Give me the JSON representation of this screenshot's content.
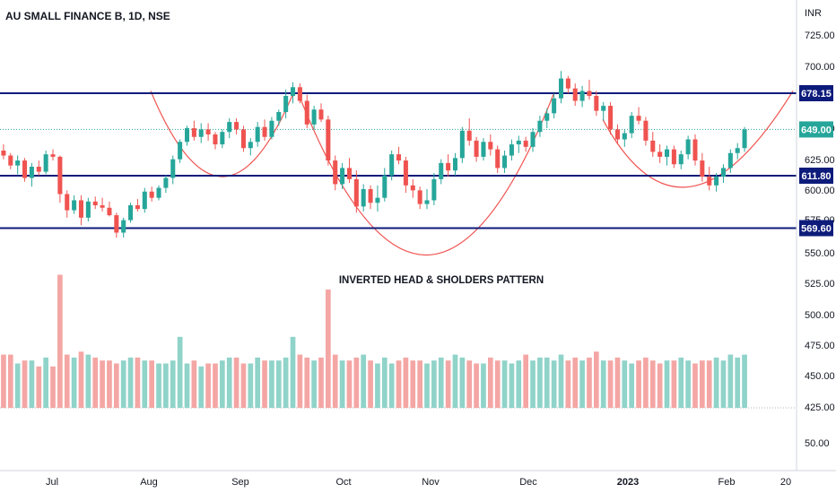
{
  "chart_data": {
    "type": "candlestick",
    "title": "AU SMALL FINANCE B, 1D, NSE",
    "currency_label": "INR",
    "annotation": "INVERTED HEAD & SHOLDERS PATTERN",
    "price_ylim": [
      535,
      745
    ],
    "price_ticks": [
      "725.00",
      "700.00",
      "650.00",
      "625.00",
      "600.00",
      "575.00",
      "550.00",
      "525.00",
      "500.00",
      "475.00",
      "450.00",
      "425.00",
      "50.00"
    ],
    "volume_ticks_note": "volume scale labels shown on right axis",
    "x_tick_labels": [
      "Jul",
      "Aug",
      "Sep",
      "Oct",
      "Nov",
      "Dec",
      "2023",
      "Feb",
      "20"
    ],
    "horizontal_levels": [
      {
        "label": "678.15",
        "value": 678.15,
        "color": "#0d1b7a"
      },
      {
        "label": "611.80",
        "value": 611.8,
        "color": "#0d1b7a"
      },
      {
        "label": "569.60",
        "value": 569.6,
        "color": "#0d1b7a"
      }
    ],
    "last_price": {
      "label": "649.00",
      "value": 649.0,
      "color": "#26a69a"
    },
    "colors": {
      "up": "#26a69a",
      "down": "#ef5350",
      "vol_up": "#8fd3c9",
      "vol_down": "#f4a6a4",
      "arc": "#ef5350",
      "level": "#0d1b7a"
    },
    "candles": [
      [
        632,
        637,
        625,
        628
      ],
      [
        628,
        630,
        617,
        620
      ],
      [
        620,
        628,
        613,
        624
      ],
      [
        624,
        626,
        607,
        610
      ],
      [
        610,
        622,
        603,
        619
      ],
      [
        619,
        624,
        612,
        615
      ],
      [
        615,
        632,
        613,
        629
      ],
      [
        629,
        633,
        624,
        627
      ],
      [
        627,
        628,
        590,
        597
      ],
      [
        597,
        600,
        578,
        584
      ],
      [
        584,
        596,
        581,
        592
      ],
      [
        592,
        596,
        572,
        578
      ],
      [
        578,
        594,
        575,
        591
      ],
      [
        591,
        595,
        585,
        588
      ],
      [
        588,
        594,
        583,
        586
      ],
      [
        586,
        591,
        579,
        580
      ],
      [
        580,
        582,
        562,
        566
      ],
      [
        566,
        578,
        562,
        576
      ],
      [
        576,
        590,
        574,
        588
      ],
      [
        588,
        593,
        583,
        585
      ],
      [
        585,
        602,
        582,
        599
      ],
      [
        599,
        603,
        591,
        594
      ],
      [
        594,
        604,
        592,
        602
      ],
      [
        602,
        612,
        598,
        610
      ],
      [
        610,
        628,
        605,
        625
      ],
      [
        625,
        641,
        622,
        639
      ],
      [
        639,
        652,
        636,
        650
      ],
      [
        650,
        656,
        640,
        643
      ],
      [
        643,
        654,
        638,
        649
      ],
      [
        649,
        654,
        640,
        645
      ],
      [
        645,
        647,
        633,
        637
      ],
      [
        637,
        649,
        634,
        647
      ],
      [
        647,
        658,
        642,
        655
      ],
      [
        655,
        658,
        645,
        649
      ],
      [
        649,
        652,
        631,
        634
      ],
      [
        634,
        642,
        628,
        639
      ],
      [
        639,
        655,
        635,
        651
      ],
      [
        651,
        657,
        640,
        643
      ],
      [
        643,
        659,
        641,
        656
      ],
      [
        656,
        665,
        652,
        663
      ],
      [
        663,
        681,
        658,
        676
      ],
      [
        676,
        687,
        670,
        683
      ],
      [
        683,
        686,
        670,
        672
      ],
      [
        672,
        677,
        650,
        653
      ],
      [
        653,
        668,
        649,
        665
      ],
      [
        665,
        670,
        655,
        657
      ],
      [
        657,
        660,
        620,
        624
      ],
      [
        624,
        628,
        600,
        605
      ],
      [
        605,
        622,
        601,
        618
      ],
      [
        618,
        626,
        606,
        609
      ],
      [
        609,
        616,
        582,
        587
      ],
      [
        587,
        605,
        583,
        601
      ],
      [
        601,
        604,
        585,
        590
      ],
      [
        590,
        604,
        583,
        594
      ],
      [
        594,
        618,
        591,
        612
      ],
      [
        612,
        632,
        608,
        629
      ],
      [
        629,
        635,
        621,
        624
      ],
      [
        624,
        627,
        598,
        604
      ],
      [
        604,
        609,
        594,
        600
      ],
      [
        600,
        603,
        585,
        589
      ],
      [
        589,
        601,
        585,
        592
      ],
      [
        592,
        614,
        588,
        609
      ],
      [
        609,
        625,
        605,
        622
      ],
      [
        622,
        629,
        611,
        616
      ],
      [
        616,
        630,
        612,
        626
      ],
      [
        626,
        651,
        622,
        648
      ],
      [
        648,
        658,
        636,
        640
      ],
      [
        640,
        643,
        623,
        627
      ],
      [
        627,
        642,
        624,
        639
      ],
      [
        639,
        645,
        628,
        633
      ],
      [
        633,
        636,
        614,
        618
      ],
      [
        618,
        632,
        614,
        628
      ],
      [
        628,
        641,
        624,
        637
      ],
      [
        637,
        644,
        630,
        640
      ],
      [
        640,
        643,
        631,
        635
      ],
      [
        635,
        650,
        631,
        647
      ],
      [
        647,
        660,
        643,
        656
      ],
      [
        656,
        666,
        650,
        662
      ],
      [
        662,
        678,
        658,
        674
      ],
      [
        674,
        696,
        670,
        690
      ],
      [
        690,
        692,
        678,
        682
      ],
      [
        682,
        686,
        668,
        672
      ],
      [
        672,
        684,
        667,
        680
      ],
      [
        680,
        689,
        673,
        676
      ],
      [
        676,
        680,
        660,
        664
      ],
      [
        664,
        671,
        656,
        668
      ],
      [
        668,
        671,
        645,
        649
      ],
      [
        649,
        653,
        637,
        641
      ],
      [
        641,
        649,
        635,
        646
      ],
      [
        646,
        663,
        642,
        660
      ],
      [
        660,
        667,
        653,
        656
      ],
      [
        656,
        659,
        636,
        640
      ],
      [
        640,
        647,
        627,
        631
      ],
      [
        631,
        637,
        622,
        627
      ],
      [
        627,
        636,
        620,
        633
      ],
      [
        633,
        636,
        618,
        621
      ],
      [
        621,
        632,
        617,
        629
      ],
      [
        629,
        644,
        625,
        641
      ],
      [
        641,
        645,
        620,
        624
      ],
      [
        624,
        630,
        607,
        611
      ],
      [
        611,
        619,
        600,
        604
      ],
      [
        604,
        614,
        599,
        611
      ],
      [
        611,
        621,
        606,
        618
      ],
      [
        618,
        633,
        614,
        630
      ],
      [
        630,
        638,
        625,
        634
      ],
      [
        634,
        651,
        631,
        649
      ]
    ],
    "volumes": [
      18,
      18,
      15,
      16,
      16,
      14,
      17,
      14,
      45,
      18,
      17,
      19,
      18,
      17,
      16,
      16,
      15,
      16,
      17,
      17,
      16,
      16,
      15,
      15,
      16,
      24,
      15,
      16,
      14,
      15,
      15,
      16,
      17,
      17,
      15,
      15,
      17,
      16,
      16,
      16,
      17,
      24,
      18,
      17,
      16,
      17,
      40,
      18,
      16,
      16,
      17,
      18,
      16,
      15,
      17,
      15,
      16,
      17,
      16,
      16,
      15,
      16,
      17,
      16,
      18,
      17,
      16,
      15,
      15,
      17,
      16,
      16,
      15,
      16,
      18,
      16,
      17,
      17,
      16,
      18,
      16,
      17,
      16,
      17,
      19,
      16,
      16,
      17,
      16,
      15,
      16,
      17,
      16,
      15,
      16,
      16,
      17,
      16,
      15,
      16,
      16,
      17,
      16,
      18,
      17,
      18
    ]
  }
}
